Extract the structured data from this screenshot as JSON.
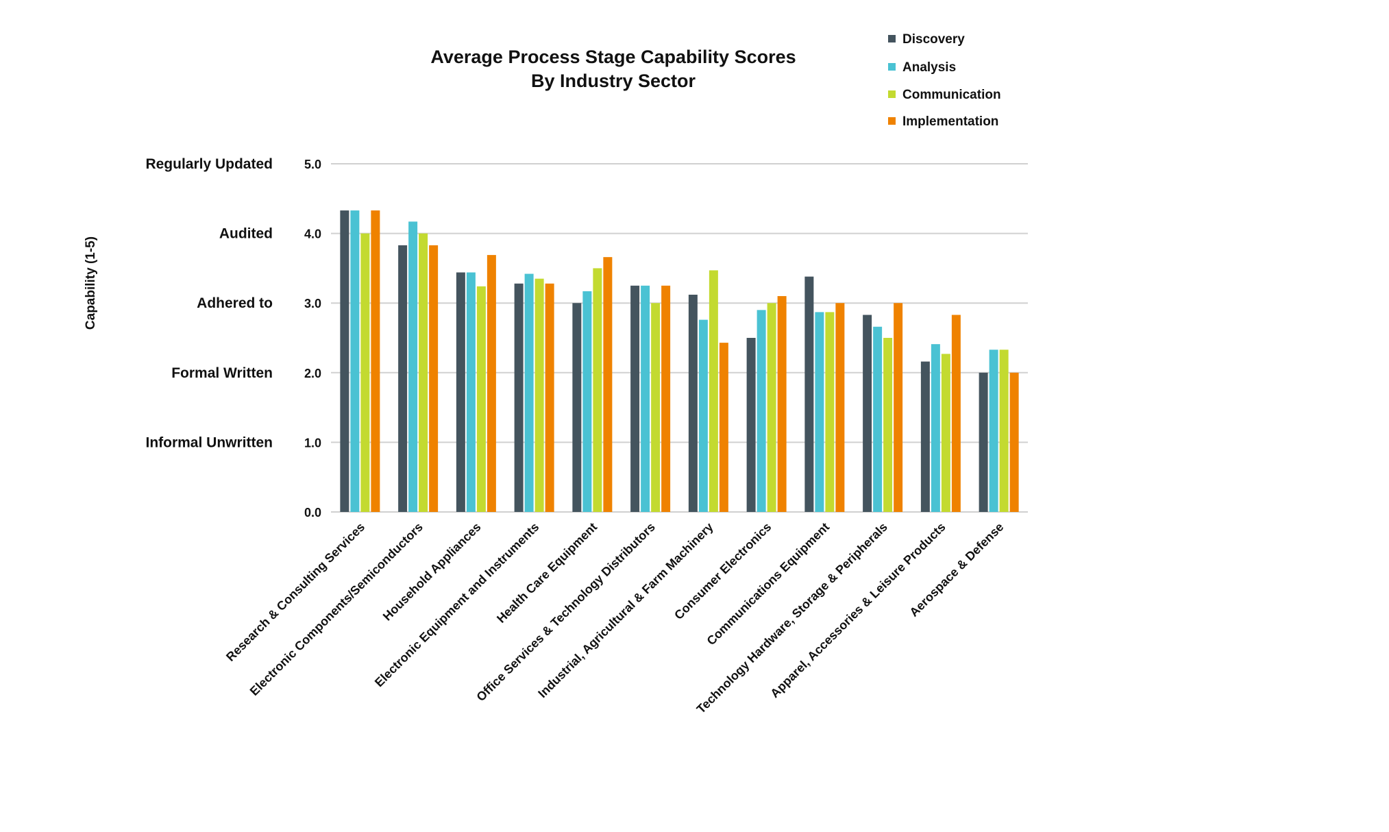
{
  "chart_data": {
    "type": "bar",
    "title": "Average Process Stage Capability Scores",
    "subtitle": "By Industry Sector",
    "xlabel": "",
    "ylabel": "Capability (1-5)",
    "ylim": [
      0,
      5
    ],
    "yticks": [
      "0.0",
      "1.0",
      "2.0",
      "3.0",
      "4.0",
      "5.0"
    ],
    "ytick_values": [
      0,
      1,
      2,
      3,
      4,
      5
    ],
    "y_level_labels": [
      {
        "value": 5,
        "label": "Regularly Updated"
      },
      {
        "value": 4,
        "label": "Audited"
      },
      {
        "value": 3,
        "label": "Adhered to"
      },
      {
        "value": 2,
        "label": "Formal Written"
      },
      {
        "value": 1,
        "label": "Informal Unwritten"
      }
    ],
    "grid": true,
    "legend_position": "top-right",
    "categories": [
      "Research & Consulting Services",
      "Electronic Components/Semiconductors",
      "Household Appliances",
      "Electronic Equipment and Instruments",
      "Health Care Equipment",
      "Office Services & Technology Distributors",
      "Industrial, Agricultural & Farm Machinery",
      "Consumer Electronics",
      "Communications Equipment",
      "Technology Hardware, Storage & Peripherals",
      "Apparel, Accessories & Leisure Products",
      "Aerospace & Defense"
    ],
    "series": [
      {
        "name": "Discovery",
        "color": "#44545e",
        "values": [
          4.33,
          3.83,
          3.44,
          3.28,
          3.0,
          3.25,
          3.12,
          2.5,
          3.38,
          2.83,
          2.16,
          2.0
        ]
      },
      {
        "name": "Analysis",
        "color": "#4ac2d3",
        "values": [
          4.33,
          4.17,
          3.44,
          3.42,
          3.17,
          3.25,
          2.76,
          2.9,
          2.87,
          2.66,
          2.41,
          2.33
        ]
      },
      {
        "name": "Communication",
        "color": "#c3da30",
        "values": [
          4.0,
          4.0,
          3.24,
          3.35,
          3.5,
          3.0,
          3.47,
          3.0,
          2.87,
          2.5,
          2.27,
          2.33
        ]
      },
      {
        "name": "Implementation",
        "color": "#ef8200",
        "values": [
          4.33,
          3.83,
          3.69,
          3.28,
          3.66,
          3.25,
          2.43,
          3.1,
          3.0,
          3.0,
          2.83,
          2.0
        ]
      }
    ]
  }
}
